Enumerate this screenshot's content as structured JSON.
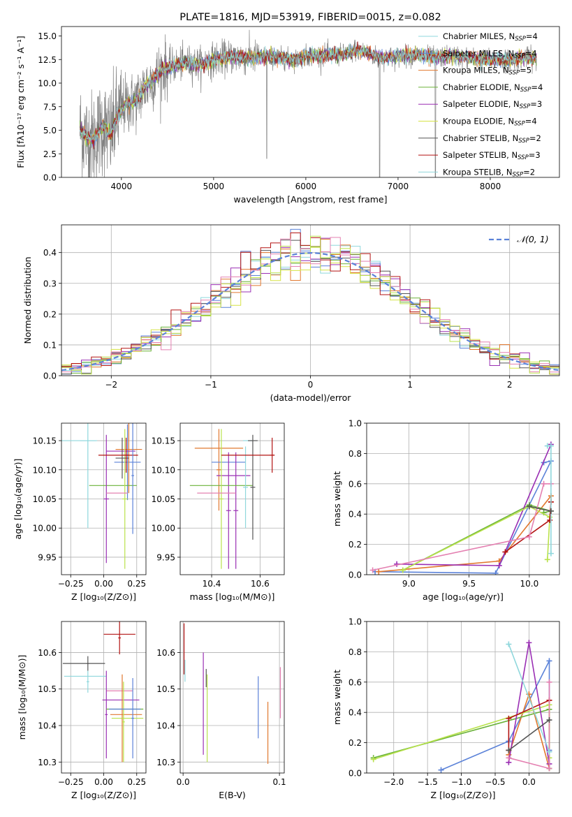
{
  "colors": {
    "cyan": "#8fd7dc",
    "blue": "#5b82d8",
    "orange": "#e1782f",
    "green": "#6ab239",
    "purple": "#9a2fb4",
    "yellow": "#d6e245",
    "gray": "#555555",
    "red": "#b31312",
    "pink": "#e480b1",
    "lime": "#b9e24c",
    "observed": "#808080",
    "gauss": "#5b82d8"
  },
  "chart_data": [
    {
      "id": "spectrum",
      "type": "line",
      "title": "PLATE=1816, MJD=53919, FIBERID=0015, z=0.082",
      "xlabel": "wavelength [Angstrom, rest frame]",
      "ylabel": "Flux [fλ10⁻¹⁷ erg cm⁻² s⁻¹ A⁻¹]",
      "xlim": [
        3350,
        8750
      ],
      "ylim": [
        0,
        16
      ],
      "xticks": [
        4000,
        5000,
        6000,
        7000,
        8000
      ],
      "yticks": [
        0.0,
        2.5,
        5.0,
        7.5,
        10.0,
        12.5,
        15.0
      ],
      "legend": "right",
      "series": [
        {
          "name": "Chabrier MILES, NSSP=4",
          "color": "cyan"
        },
        {
          "name": "Salpeter MILES, NSSP=4",
          "color": "blue"
        },
        {
          "name": "Kroupa MILES, NSSP=5",
          "color": "orange"
        },
        {
          "name": "Chabrier ELODIE, NSSP=4",
          "color": "green"
        },
        {
          "name": "Salpeter ELODIE, NSSP=3",
          "color": "purple"
        },
        {
          "name": "Kroupa ELODIE, NSSP=4",
          "color": "yellow"
        },
        {
          "name": "Chabrier STELIB, NSSP=2",
          "color": "gray"
        },
        {
          "name": "Salpeter STELIB, NSSP=3",
          "color": "red"
        },
        {
          "name": "Kroupa STELIB, NSSP=2",
          "color": "cyan"
        }
      ],
      "observed_range": [
        3550,
        8500
      ],
      "model_shape": [
        [
          3550,
          5.2
        ],
        [
          3620,
          4.2
        ],
        [
          3700,
          4.0
        ],
        [
          3800,
          5.5
        ],
        [
          3880,
          4.4
        ],
        [
          3950,
          6.4
        ],
        [
          4050,
          7.8
        ],
        [
          4150,
          8.0
        ],
        [
          4250,
          9.5
        ],
        [
          4350,
          10.5
        ],
        [
          4450,
          11.5
        ],
        [
          4550,
          11.8
        ],
        [
          4700,
          12.2
        ],
        [
          4860,
          12.0
        ],
        [
          5000,
          12.5
        ],
        [
          5200,
          12.8
        ],
        [
          5400,
          12.7
        ],
        [
          5600,
          12.8
        ],
        [
          5800,
          12.6
        ],
        [
          5900,
          12.5
        ],
        [
          6000,
          12.9
        ],
        [
          6200,
          13.0
        ],
        [
          6400,
          13.0
        ],
        [
          6563,
          13.5
        ],
        [
          6800,
          12.7
        ],
        [
          7000,
          12.8
        ],
        [
          7200,
          13.0
        ],
        [
          7400,
          12.7
        ],
        [
          7600,
          12.9
        ],
        [
          7800,
          12.6
        ],
        [
          8000,
          12.5
        ],
        [
          8200,
          12.4
        ],
        [
          8400,
          12.7
        ],
        [
          8500,
          12.6
        ]
      ]
    },
    {
      "id": "residuals",
      "type": "step",
      "xlabel": "(data-model)/error",
      "ylabel": "Normed distribution",
      "xlim": [
        -2.5,
        2.5
      ],
      "ylim": [
        0,
        0.49
      ],
      "xticks": [
        -2,
        -1,
        0,
        1,
        2
      ],
      "yticks": [
        0.0,
        0.1,
        0.2,
        0.3,
        0.4
      ],
      "legend": {
        "label": "𝒩(0, 1)",
        "placement": "upper right"
      },
      "bins": {
        "start": -2.5,
        "width": 0.1,
        "count": 50
      }
    },
    {
      "id": "age-vs-Z",
      "type": "errorbar",
      "xlabel": "Z [log₁₀(Z/Z⊙)]",
      "ylabel": "age  [log₁₀(age/yr)]",
      "xlim": [
        -0.32,
        0.32
      ],
      "ylim": [
        9.92,
        10.18
      ],
      "xticks": [
        -0.25,
        0.0,
        0.25
      ],
      "yticks": [
        9.95,
        10.0,
        10.05,
        10.1,
        10.15
      ],
      "points": [
        {
          "color": "cyan",
          "x": -0.2,
          "xerr": 0.15,
          "y": 10.15,
          "yerr": 0.003
        },
        {
          "color": "cyan",
          "x": -0.12,
          "xerr": 0.06,
          "y": 10.15,
          "yerr": 0.15
        },
        {
          "color": "blue",
          "x": 0.18,
          "xerr": 0.1,
          "y": 10.113,
          "yerr": 0.065
        },
        {
          "color": "orange",
          "x": 0.19,
          "xerr": 0.1,
          "y": 10.135,
          "yerr": 0.075
        },
        {
          "color": "green",
          "x": 0.07,
          "xerr": 0.18,
          "y": 10.073,
          "yerr": 0.003
        },
        {
          "color": "purple",
          "x": 0.13,
          "xerr": 0.11,
          "y": 10.132,
          "yerr": 0.003
        },
        {
          "color": "purple",
          "x": 0.02,
          "xerr": 0.02,
          "y": 10.05,
          "yerr": 0.11
        },
        {
          "color": "lime",
          "x": 0.16,
          "xerr": 0.02,
          "y": 10.05,
          "yerr": 0.12
        },
        {
          "color": "gray",
          "x": 0.14,
          "xerr": 0.05,
          "y": 10.12,
          "yerr": 0.035
        },
        {
          "color": "red",
          "x": 0.11,
          "xerr": 0.15,
          "y": 10.125,
          "yerr": 0.003
        },
        {
          "color": "red",
          "x": 0.17,
          "xerr": 0.02,
          "y": 10.125,
          "yerr": 0.03
        },
        {
          "color": "pink",
          "x": 0.1,
          "xerr": 0.08,
          "y": 10.06,
          "yerr": 0.003
        },
        {
          "color": "blue",
          "x": 0.22,
          "xerr": 0.01,
          "y": 10.09,
          "yerr": 0.1
        }
      ]
    },
    {
      "id": "age-vs-mass",
      "type": "errorbar",
      "xlabel": "mass [log₁₀(M/M⊙)]",
      "ylabel": "",
      "xlim": [
        10.27,
        10.7
      ],
      "ylim": [
        9.92,
        10.18
      ],
      "xticks": [
        10.4,
        10.6
      ],
      "yticks": [
        9.95,
        10.0,
        10.05,
        10.1,
        10.15
      ],
      "points": [
        {
          "color": "orange",
          "x": 10.43,
          "xerr": 0.1,
          "y": 10.137,
          "yerr": 0.003
        },
        {
          "color": "orange",
          "x": 10.43,
          "xerr": 0.01,
          "y": 10.1,
          "yerr": 0.07
        },
        {
          "color": "blue",
          "x": 10.47,
          "xerr": 0.07,
          "y": 10.113,
          "yerr": 0.003
        },
        {
          "color": "purple",
          "x": 10.49,
          "xerr": 0.07,
          "y": 10.09,
          "yerr": 0.003
        },
        {
          "color": "purple",
          "x": 10.5,
          "xerr": 0.01,
          "y": 10.03,
          "yerr": 0.1
        },
        {
          "color": "purple",
          "x": 10.47,
          "xerr": 0.01,
          "y": 10.03,
          "yerr": 0.1
        },
        {
          "color": "green",
          "x": 10.44,
          "xerr": 0.13,
          "y": 10.073,
          "yerr": 0.003
        },
        {
          "color": "lime",
          "x": 10.44,
          "xerr": 0.01,
          "y": 10.05,
          "yerr": 0.12
        },
        {
          "color": "pink",
          "x": 10.42,
          "xerr": 0.08,
          "y": 10.06,
          "yerr": 0.003
        },
        {
          "color": "cyan",
          "x": 10.55,
          "xerr": 0.02,
          "y": 10.15,
          "yerr": 0.003
        },
        {
          "color": "cyan",
          "x": 10.54,
          "xerr": 0.01,
          "y": 10.07,
          "yerr": 0.07
        },
        {
          "color": "gray",
          "x": 10.57,
          "xerr": 0.01,
          "y": 10.07,
          "yerr": 0.09
        },
        {
          "color": "gray",
          "x": 10.57,
          "xerr": 0.02,
          "y": 10.15,
          "yerr": 0.003
        },
        {
          "color": "red",
          "x": 10.55,
          "xerr": 0.11,
          "y": 10.125,
          "yerr": 0.003
        },
        {
          "color": "red",
          "x": 10.65,
          "xerr": 0.01,
          "y": 10.125,
          "yerr": 0.03
        }
      ]
    },
    {
      "id": "weight-vs-age",
      "type": "line",
      "xlabel": "age  [log₁₀(age/yr)]",
      "ylabel": "mass weight",
      "xlim": [
        8.65,
        10.25
      ],
      "ylim": [
        0,
        1.0
      ],
      "xticks": [
        9.0,
        9.5,
        10.0
      ],
      "yticks": [
        0.0,
        0.2,
        0.4,
        0.6,
        0.8,
        1.0
      ],
      "series": [
        {
          "color": "blue",
          "x": [
            8.72,
            9.72,
            10.18,
            10.12
          ],
          "y": [
            0.02,
            0.01,
            0.75,
            0.74
          ]
        },
        {
          "color": "orange",
          "x": [
            8.75,
            9.75,
            10.18,
            10.18
          ],
          "y": [
            0.02,
            0.09,
            0.52,
            0.48
          ]
        },
        {
          "color": "green",
          "x": [
            8.95,
            10.0,
            10.18,
            10.12
          ],
          "y": [
            0.03,
            0.46,
            0.42,
            0.41
          ]
        },
        {
          "color": "purple",
          "x": [
            8.9,
            9.75,
            10.18
          ],
          "y": [
            0.07,
            0.06,
            0.86
          ]
        },
        {
          "color": "lime",
          "x": [
            8.95,
            10.0,
            10.17,
            10.15
          ],
          "y": [
            0.03,
            0.45,
            0.38,
            0.1
          ]
        },
        {
          "color": "red",
          "x": [
            9.8,
            10.17,
            10.18
          ],
          "y": [
            0.15,
            0.36,
            0.48
          ]
        },
        {
          "color": "pink",
          "x": [
            8.7,
            10.0,
            10.12,
            10.18
          ],
          "y": [
            0.03,
            0.25,
            0.6,
            0.6
          ]
        },
        {
          "color": "cyan",
          "x": [
            10.15,
            10.18,
            10.18
          ],
          "y": [
            0.85,
            0.85,
            0.14
          ]
        },
        {
          "color": "gray",
          "x": [
            10.0,
            10.18
          ],
          "y": [
            0.45,
            0.42
          ]
        }
      ]
    },
    {
      "id": "mass-vs-Z",
      "type": "errorbar",
      "xlabel": "Z [log₁₀(Z/Z⊙)]",
      "ylabel": "mass [log₁₀(M/M⊙)]",
      "xlim": [
        -0.32,
        0.32
      ],
      "ylim": [
        10.27,
        10.685
      ],
      "xticks": [
        -0.25,
        0.0,
        0.25
      ],
      "yticks": [
        10.3,
        10.4,
        10.5,
        10.6
      ],
      "points": [
        {
          "color": "red",
          "x": 0.12,
          "xerr": 0.12,
          "y": 10.65,
          "yerr": 0.003
        },
        {
          "color": "red",
          "x": 0.12,
          "xerr": 0.01,
          "y": 10.64,
          "yerr": 0.045
        },
        {
          "color": "gray",
          "x": -0.15,
          "xerr": 0.16,
          "y": 10.57,
          "yerr": 0.003
        },
        {
          "color": "gray",
          "x": -0.12,
          "xerr": 0.01,
          "y": 10.57,
          "yerr": 0.02
        },
        {
          "color": "cyan",
          "x": -0.14,
          "xerr": 0.16,
          "y": 10.535,
          "yerr": 0.003
        },
        {
          "color": "cyan",
          "x": -0.12,
          "xerr": 0.01,
          "y": 10.52,
          "yerr": 0.03
        },
        {
          "color": "pink",
          "x": 0.12,
          "xerr": 0.1,
          "y": 10.495,
          "yerr": 0.003
        },
        {
          "color": "purple",
          "x": 0.13,
          "xerr": 0.14,
          "y": 10.47,
          "yerr": 0.003
        },
        {
          "color": "purple",
          "x": 0.02,
          "xerr": 0.01,
          "y": 10.43,
          "yerr": 0.12
        },
        {
          "color": "green",
          "x": 0.16,
          "xerr": 0.14,
          "y": 10.445,
          "yerr": 0.003
        },
        {
          "color": "orange",
          "x": 0.17,
          "xerr": 0.12,
          "y": 10.43,
          "yerr": 0.003
        },
        {
          "color": "orange",
          "x": 0.14,
          "xerr": 0.01,
          "y": 10.42,
          "yerr": 0.12
        },
        {
          "color": "lime",
          "x": 0.18,
          "xerr": 0.12,
          "y": 10.42,
          "yerr": 0.003
        },
        {
          "color": "lime",
          "x": 0.15,
          "xerr": 0.01,
          "y": 10.41,
          "yerr": 0.11
        },
        {
          "color": "blue",
          "x": 0.22,
          "xerr": 0.01,
          "y": 10.42,
          "yerr": 0.11
        },
        {
          "color": "blue",
          "x": 0.16,
          "xerr": 0.12,
          "y": 10.445,
          "yerr": 0.003
        }
      ]
    },
    {
      "id": "mass-vs-ebv",
      "type": "errorbar",
      "xlabel": "E(B-V)",
      "ylabel": "",
      "xlim": [
        -0.003,
        0.105
      ],
      "ylim": [
        10.27,
        10.685
      ],
      "xticks": [
        0.0,
        0.1
      ],
      "yticks": [
        10.3,
        10.4,
        10.5,
        10.6
      ],
      "points": [
        {
          "color": "red",
          "x": 0.001,
          "xerr": 0.0,
          "y": 10.61,
          "yerr": 0.07
        },
        {
          "color": "cyan",
          "x": 0.002,
          "xerr": 0.0,
          "y": 10.55,
          "yerr": 0.03
        },
        {
          "color": "purple",
          "x": 0.021,
          "xerr": 0.0,
          "y": 10.46,
          "yerr": 0.14
        },
        {
          "color": "gray",
          "x": 0.024,
          "xerr": 0.0,
          "y": 10.53,
          "yerr": 0.025
        },
        {
          "color": "lime",
          "x": 0.025,
          "xerr": 0.0,
          "y": 10.42,
          "yerr": 0.12
        },
        {
          "color": "blue",
          "x": 0.078,
          "xerr": 0.0,
          "y": 10.45,
          "yerr": 0.085
        },
        {
          "color": "orange",
          "x": 0.088,
          "xerr": 0.0,
          "y": 10.38,
          "yerr": 0.085
        },
        {
          "color": "pink",
          "x": 0.101,
          "xerr": 0.0,
          "y": 10.49,
          "yerr": 0.07
        }
      ]
    },
    {
      "id": "weight-vs-Z",
      "type": "line",
      "xlabel": "Z [log₁₀(Z/Z⊙)]",
      "ylabel": "mass weight",
      "xlim": [
        -2.4,
        0.45
      ],
      "ylim": [
        0,
        1.0
      ],
      "xticks": [
        -2.0,
        -1.5,
        -1.0,
        -0.5,
        0.0
      ],
      "yticks": [
        0.0,
        0.2,
        0.4,
        0.6,
        0.8,
        1.0
      ],
      "series": [
        {
          "color": "blue",
          "x": [
            -1.3,
            -0.3,
            0.3,
            0.3
          ],
          "y": [
            0.02,
            0.21,
            0.74,
            0.15
          ]
        },
        {
          "color": "orange",
          "x": [
            -0.3,
            0.0,
            0.3,
            0.3
          ],
          "y": [
            0.12,
            0.52,
            0.03,
            0.48
          ]
        },
        {
          "color": "green",
          "x": [
            -2.3,
            0.3,
            0.3
          ],
          "y": [
            0.1,
            0.42,
            0.03
          ]
        },
        {
          "color": "lime",
          "x": [
            -2.3,
            0.3,
            0.3
          ],
          "y": [
            0.09,
            0.45,
            0.1
          ]
        },
        {
          "color": "purple",
          "x": [
            -0.3,
            0.0,
            0.3
          ],
          "y": [
            0.07,
            0.86,
            0.06
          ]
        },
        {
          "color": "red",
          "x": [
            -0.3,
            -0.3,
            0.3
          ],
          "y": [
            0.15,
            0.36,
            0.48
          ]
        },
        {
          "color": "pink",
          "x": [
            -0.3,
            0.3,
            0.3
          ],
          "y": [
            0.1,
            0.03,
            0.6
          ]
        },
        {
          "color": "cyan",
          "x": [
            -0.3,
            0.3,
            0.3
          ],
          "y": [
            0.85,
            0.14,
            0.14
          ]
        },
        {
          "color": "gray",
          "x": [
            -0.3,
            0.3
          ],
          "y": [
            0.15,
            0.35
          ]
        }
      ]
    }
  ]
}
